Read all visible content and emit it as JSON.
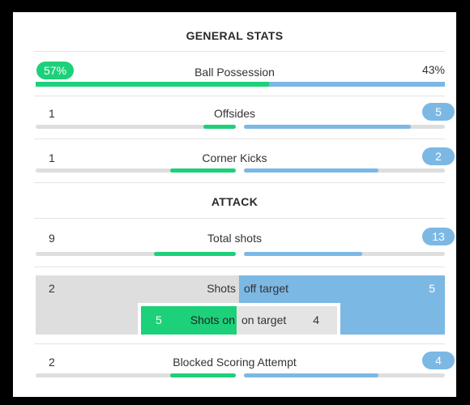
{
  "sections": {
    "general_title": "GENERAL STATS",
    "attack_title": "ATTACK"
  },
  "possession": {
    "label": "Ball Possession",
    "home_value": "57%",
    "away_value": "43%",
    "home_fraction": 0.57,
    "away_fraction": 0.43
  },
  "offsides": {
    "label": "Offsides",
    "home": "1",
    "away": "5",
    "home_fill": 0.16,
    "away_fill": 0.83
  },
  "corners": {
    "label": "Corner Kicks",
    "home": "1",
    "away": "2",
    "home_fill": 0.33,
    "away_fill": 0.67
  },
  "total_shots": {
    "label": "Total shots",
    "home": "9",
    "away": "13",
    "home_fill": 0.41,
    "away_fill": 0.59
  },
  "shots_off_target": {
    "label_left": "Shots",
    "label_right": "off target",
    "home": "2",
    "away": "5"
  },
  "shots_on_target": {
    "label_left": "Shots on",
    "label_right": "on target",
    "home": "5",
    "away": "4"
  },
  "blocked": {
    "label": "Blocked Scoring Attempt",
    "home": "2",
    "away": "4",
    "home_fill": 0.33,
    "away_fill": 0.67
  },
  "colors": {
    "home": "#1dd07a",
    "away": "#7cb8e4",
    "track": "#dedede"
  }
}
